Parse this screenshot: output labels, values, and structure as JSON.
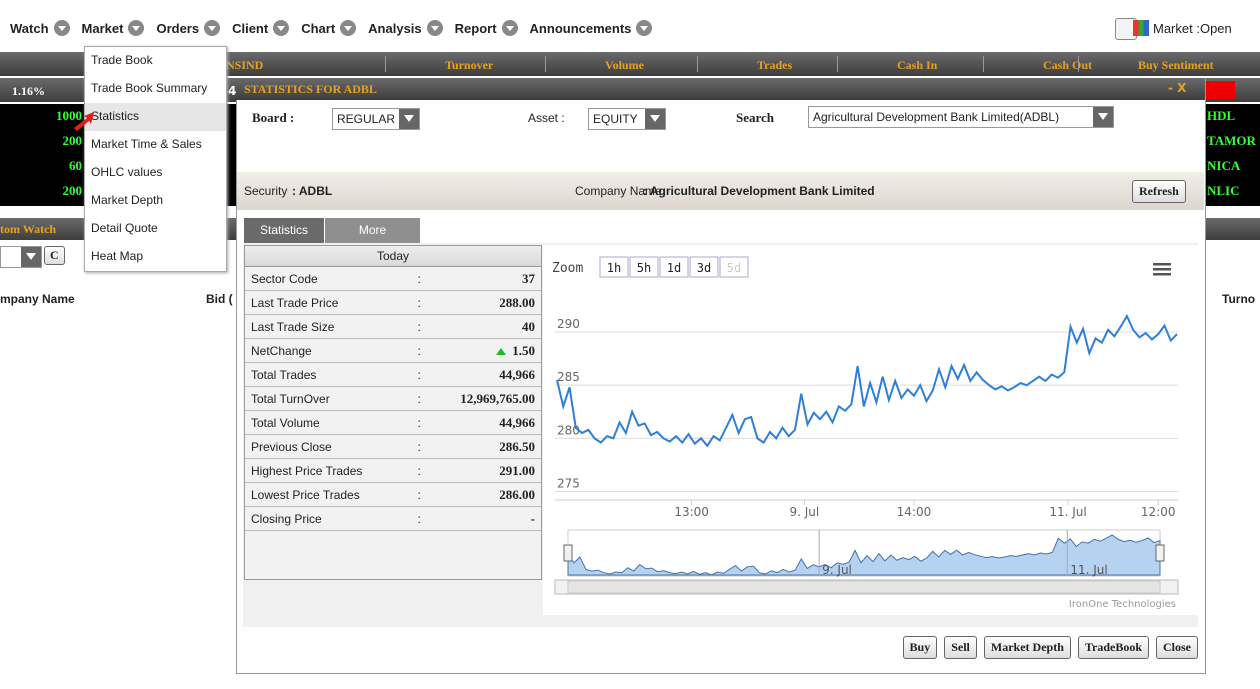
{
  "menu": [
    "Watch",
    "Market",
    "Orders",
    "Client",
    "Chart",
    "Analysis",
    "Report",
    "Announcements"
  ],
  "market_status": "Market :Open",
  "market_menu": [
    "Trade Book",
    "Trade Book Summary",
    "Statistics",
    "Market Time & Sales",
    "OHLC values",
    "Market Depth",
    "Detail Quote",
    "Heat Map"
  ],
  "header_columns": [
    "NSIND",
    "Turnover",
    "Volume",
    "Trades",
    "Cash In",
    "Cash Out",
    "Buy Sentiment"
  ],
  "left_panel": {
    "change": "1.16%",
    "fragment": "4.",
    "ticker": [
      "1000",
      "200",
      "60",
      "200"
    ],
    "watch_title": "tom Watch",
    "button": "C",
    "columns": [
      "mpany Name",
      "Bid ("
    ]
  },
  "right_panel": {
    "symbols": [
      "HDL",
      "TAMOR",
      "NICA",
      "NLIC"
    ],
    "column": "Turno"
  },
  "modal": {
    "title": "STATISTICS FOR ADBL",
    "controls": "- X",
    "board_label": "Board :",
    "board": "REGULAR",
    "asset_label": "Asset :",
    "asset": "EQUITY",
    "search_label": "Search",
    "search": "Agricultural Development Bank Limited(ADBL)",
    "security_label": "Security",
    "security": ": ADBL",
    "company_label": "Company Name",
    "company": ": Agricultural Development Bank Limited",
    "refresh": "Refresh",
    "tabs": [
      "Statistics",
      "More"
    ],
    "table": {
      "header": "Today",
      "rows": [
        [
          "Sector Code",
          ":",
          "37"
        ],
        [
          "Last Trade Price",
          ":",
          "288.00"
        ],
        [
          "Last Trade Size",
          ":",
          "40"
        ],
        [
          "NetChange",
          ":",
          "1.50"
        ],
        [
          "Total Trades",
          ":",
          "44,966"
        ],
        [
          "Total TurnOver",
          ":",
          "12,969,765.00"
        ],
        [
          "Total Volume",
          ":",
          "44,966"
        ],
        [
          "Previous Close",
          ":",
          "286.50"
        ],
        [
          "Highest Price Trades",
          ":",
          "291.00"
        ],
        [
          "Lowest Price Trades",
          ":",
          "286.00"
        ],
        [
          "Closing Price",
          ":",
          "-"
        ]
      ]
    },
    "buttons": [
      "Buy",
      "Sell",
      "Market Depth",
      "TradeBook",
      "Close"
    ]
  },
  "chart": {
    "type": "line",
    "zoom_label": "Zoom",
    "zoom_buttons": [
      "1h",
      "5h",
      "1d",
      "3d",
      "5d"
    ],
    "color": "#2f7ed8",
    "ylim": [
      274.2,
      291.6
    ],
    "yticks": [
      275,
      280,
      285,
      290
    ],
    "xticks": [
      {
        "value": 21.5,
        "label": "13:00"
      },
      {
        "value": 39.5,
        "label": "9. Jul"
      },
      {
        "value": 57,
        "label": "14:00"
      },
      {
        "value": 81.6,
        "label": "11. Jul"
      },
      {
        "value": 96,
        "label": "12:00"
      }
    ],
    "navigator_labels": [
      {
        "value": 42,
        "label": "9. Jul"
      },
      {
        "value": 83.5,
        "label": "11. Jul"
      }
    ],
    "credit": "IronOne Technologies",
    "values": [
      285.5,
      283,
      284.8,
      281,
      280.5,
      280.8,
      280,
      279.6,
      280.2,
      280,
      281.5,
      280.5,
      282.5,
      281.2,
      281.4,
      280.3,
      280.6,
      280,
      279.7,
      280.2,
      279.6,
      280.4,
      279.5,
      280,
      279.3,
      280.2,
      279.8,
      281,
      282.2,
      280.5,
      281.8,
      282,
      280,
      279.6,
      280.6,
      280,
      281,
      280.2,
      280.8,
      284.2,
      281.3,
      282.4,
      281.8,
      282.5,
      281.5,
      283,
      282.6,
      283.2,
      286.8,
      283,
      285.2,
      283.4,
      285.8,
      283.6,
      285.4,
      283.8,
      284.6,
      284,
      285,
      283.5,
      284.5,
      286.5,
      284.8,
      286.8,
      285.6,
      286.9,
      285.4,
      286.2,
      285.5,
      285,
      284.6,
      284.9,
      284.5,
      284.8,
      285.2,
      285,
      285.4,
      285.8,
      285.4,
      286,
      285.7,
      286.2,
      290.5,
      289,
      290.3,
      288,
      289.4,
      289,
      290.2,
      289.6,
      290.5,
      291.5,
      290.2,
      289.5,
      289.9,
      289.3,
      289.8,
      290.6,
      289.2,
      289.8
    ]
  }
}
